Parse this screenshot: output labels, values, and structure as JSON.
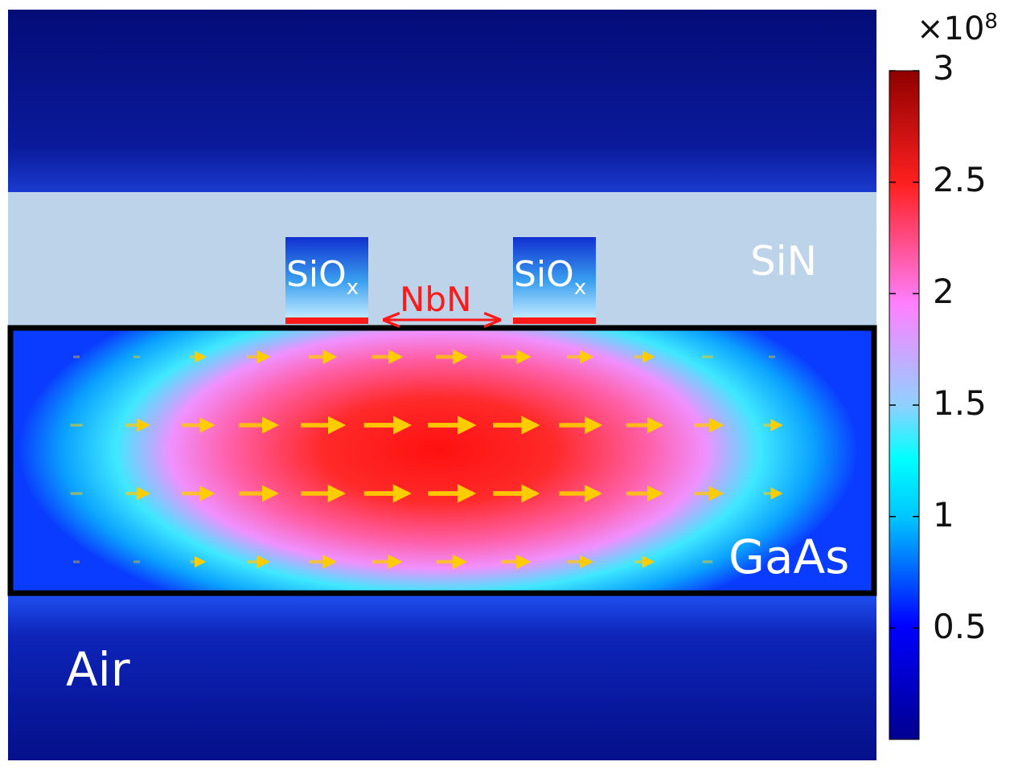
{
  "regions": {
    "air_label": "Air",
    "gaas_label": "GaAs",
    "sin_label": "SiN",
    "nbn_label": "NbN",
    "siox_base": "SiO",
    "siox_subscript": "x"
  },
  "colorbar": {
    "multiplier_prefix": "×10",
    "multiplier_exponent": "8",
    "ticks": [
      "3",
      "2.5",
      "2",
      "1.5",
      "1",
      "0.5"
    ],
    "range": [
      0,
      3
    ],
    "colormap": [
      "#00008f",
      "#0000ff",
      "#00c4ff",
      "#00ffff",
      "#ff80ff",
      "#ff2020",
      "#8f0000"
    ]
  },
  "colors": {
    "sin_layer": "#bcd3ea",
    "nbn": "#ff1a1a",
    "arrows": "#ffcc00",
    "air": "#0a1aa0"
  }
}
